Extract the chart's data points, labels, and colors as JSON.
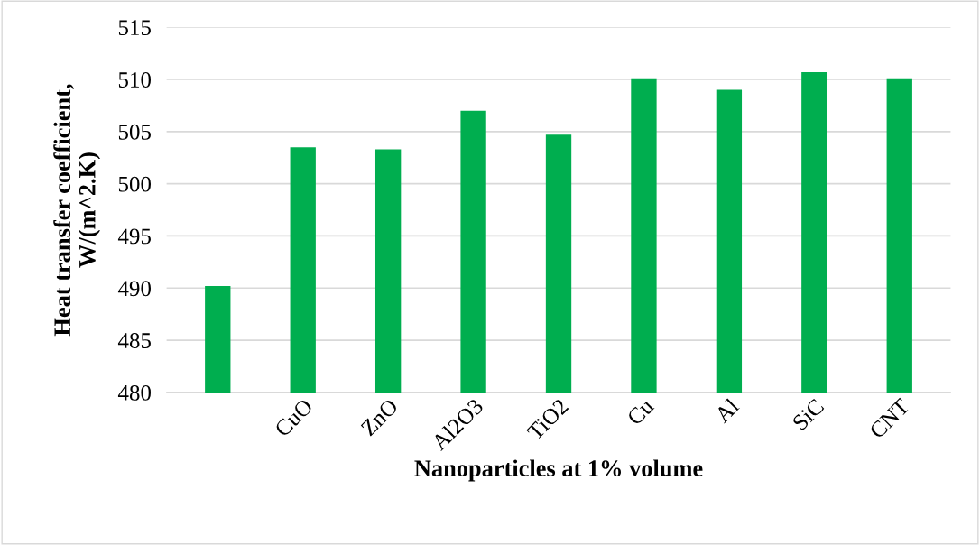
{
  "chart_data": {
    "type": "bar",
    "xlabel": "Nanoparticles at 1% volume",
    "ylabel": "Heat transfer coefficient,\nW/(m^2.K)",
    "categories": [
      null,
      "CuO",
      "ZnO",
      "Al2O3",
      "TiO2",
      "Cu",
      "Al",
      "SiC",
      "CNT"
    ],
    "values": [
      490.2,
      503.5,
      503.3,
      507.0,
      504.7,
      510.1,
      509.0,
      510.7,
      510.1
    ],
    "color": "#00ae4f",
    "ylim": [
      480,
      515
    ],
    "yticks": [
      480,
      485,
      490,
      495,
      500,
      505,
      510,
      515
    ],
    "grid": "y",
    "legend": false
  }
}
